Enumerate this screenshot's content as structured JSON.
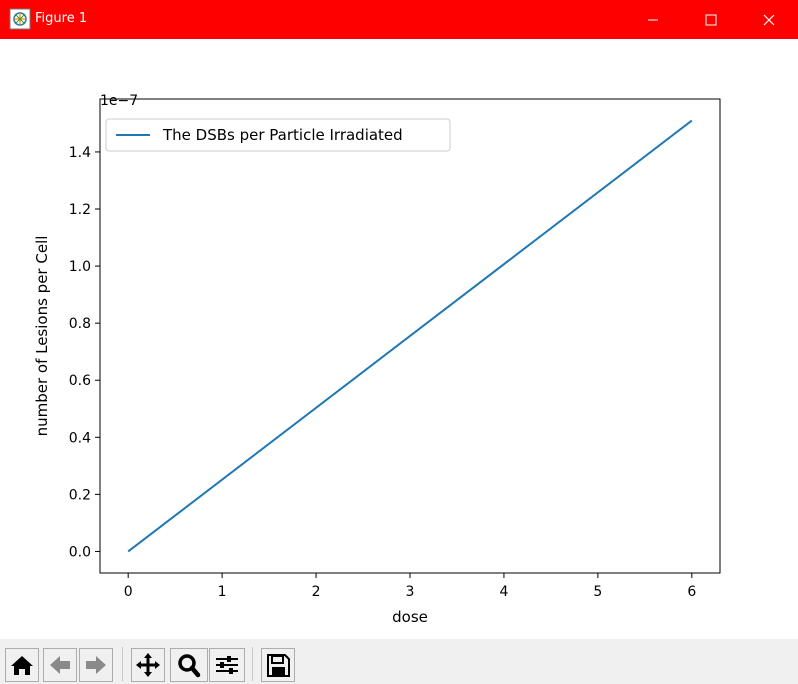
{
  "window": {
    "title": "Figure 1",
    "titlebar_color": "#ff0000",
    "icons": [
      "app-icon",
      "minimize-icon",
      "maximize-icon",
      "close-icon"
    ]
  },
  "toolbar": {
    "buttons": [
      {
        "name": "home-button",
        "icon": "home-icon"
      },
      {
        "name": "back-button",
        "icon": "back-arrow-icon"
      },
      {
        "name": "forward-button",
        "icon": "forward-arrow-icon"
      },
      {
        "name": "pan-button",
        "icon": "move-icon"
      },
      {
        "name": "zoom-button",
        "icon": "magnifier-icon"
      },
      {
        "name": "configure-subplots-button",
        "icon": "sliders-icon"
      },
      {
        "name": "save-button",
        "icon": "floppy-disk-icon"
      }
    ]
  },
  "chart_data": {
    "type": "line",
    "title": "",
    "xlabel": "dose",
    "ylabel": "number of Lesions per Cell",
    "y_offset_label": "1e−7",
    "xlim": [
      -0.3,
      6.3
    ],
    "ylim": [
      -0.0755,
      1.5855
    ],
    "x_ticks": [
      0,
      1,
      2,
      3,
      4,
      5,
      6
    ],
    "x_tick_labels": [
      "0",
      "1",
      "2",
      "3",
      "4",
      "5",
      "6"
    ],
    "y_ticks": [
      0.0,
      0.2,
      0.4,
      0.6,
      0.8,
      1.0,
      1.2,
      1.4
    ],
    "y_tick_labels": [
      "0.0",
      "0.2",
      "0.4",
      "0.6",
      "0.8",
      "1.0",
      "1.2",
      "1.4"
    ],
    "grid": false,
    "legend_position": "upper-left",
    "series": [
      {
        "name": "The DSBs per Particle Irradiated",
        "color": "#1f77b4",
        "x": [
          0,
          6
        ],
        "y": [
          0.0,
          1.51
        ]
      }
    ]
  }
}
